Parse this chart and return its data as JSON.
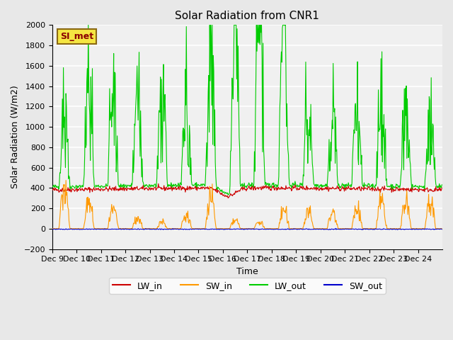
{
  "title": "Solar Radiation from CNR1",
  "ylabel": "Solar Radiation (W/m2)",
  "xlabel": "Time",
  "ylim": [
    -200,
    2000
  ],
  "yticks": [
    -200,
    0,
    200,
    400,
    600,
    800,
    1000,
    1200,
    1400,
    1600,
    1800,
    2000
  ],
  "station_label": "SI_met",
  "colors": {
    "LW_in": "#cc0000",
    "SW_in": "#ff9900",
    "LW_out": "#00cc00",
    "SW_out": "#0000cc"
  },
  "x_tick_labels": [
    "Dec 9",
    "Dec 10",
    "Dec 11",
    "Dec 12",
    "Dec 13",
    "Dec 14",
    "Dec 15",
    "Dec 16",
    "Dec 17",
    "Dec 18",
    "Dec 19",
    "Dec 20",
    "Dec 21",
    "Dec 22",
    "Dec 23",
    "Dec 24"
  ],
  "background_color": "#e8e8e8",
  "plot_bg_color": "#f0f0f0",
  "grid_color": "#ffffff"
}
